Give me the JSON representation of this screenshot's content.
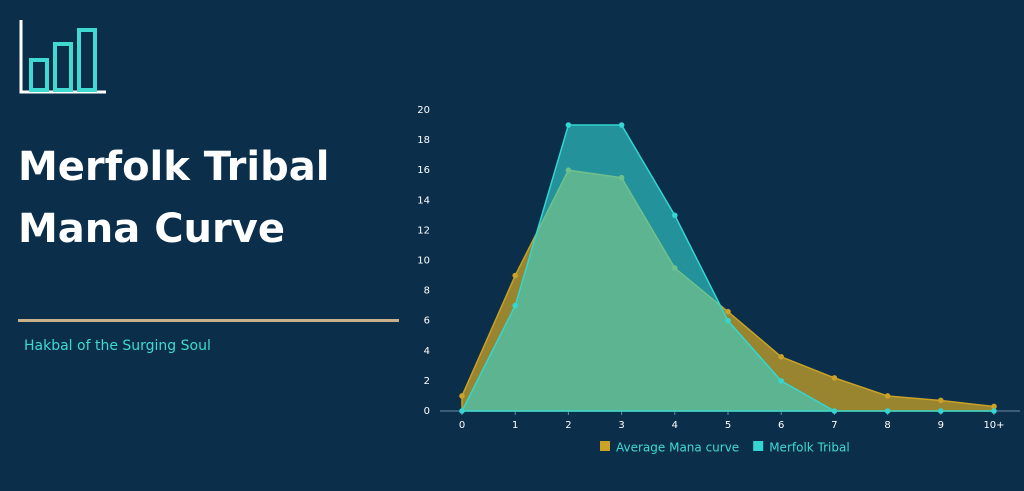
{
  "title": "Merfolk Tribal Mana Curve",
  "subtitle": "Hakbal of the Surging Soul",
  "chart_data": {
    "type": "area",
    "categories": [
      "0",
      "1",
      "2",
      "3",
      "4",
      "5",
      "6",
      "7",
      "8",
      "9",
      "10+"
    ],
    "series": [
      {
        "name": "Average Mana curve",
        "color": "#c9a227",
        "values": [
          1,
          9,
          16,
          15.5,
          9.5,
          6.6,
          3.6,
          2.2,
          1,
          0.7,
          0.3
        ]
      },
      {
        "name": "Merfolk Tribal",
        "color": "#33d6d0",
        "values": [
          0,
          7,
          19,
          19,
          13,
          6,
          2,
          0,
          0,
          0,
          0
        ]
      }
    ],
    "ylim": [
      0,
      20
    ],
    "yticks": [
      0,
      2,
      4,
      6,
      8,
      10,
      12,
      14,
      16,
      18,
      20
    ],
    "grid": false,
    "legend": "bottom"
  }
}
